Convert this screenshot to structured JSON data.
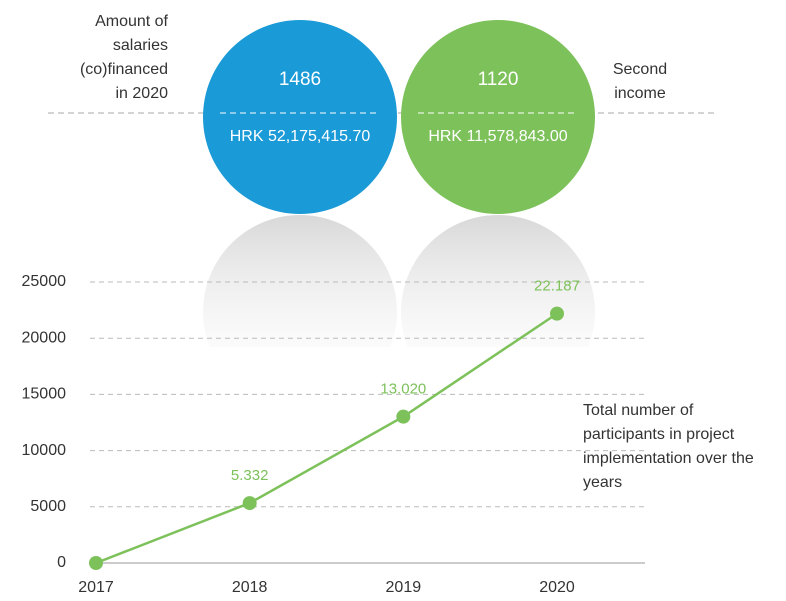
{
  "header": {
    "left_label": [
      "Amount of",
      "salaries",
      "(co)financed",
      "in 2020"
    ],
    "right_label": [
      "Second",
      "income"
    ]
  },
  "circles": [
    {
      "count": 1486,
      "amount": "HRK 52,175,415.70",
      "color": "#1a9ad6"
    },
    {
      "count": 1120,
      "amount": "HRK 11,578,843.00",
      "color": "#7dc15a"
    }
  ],
  "chart_data": {
    "type": "line",
    "categories": [
      "2017",
      "2018",
      "2019",
      "2020"
    ],
    "series": [
      {
        "name": "Total number of participants",
        "color": "#7dc15a",
        "values": [
          0,
          5332,
          13020,
          22187
        ],
        "value_labels": [
          null,
          "5.332",
          "13.020",
          "22.187"
        ]
      }
    ],
    "ylim": [
      0,
      25000
    ],
    "yticks": [
      0,
      5000,
      10000,
      15000,
      20000,
      25000
    ],
    "grid": true,
    "annotation": [
      "Total number of",
      "participants in project",
      "implementation over the",
      "years"
    ]
  }
}
